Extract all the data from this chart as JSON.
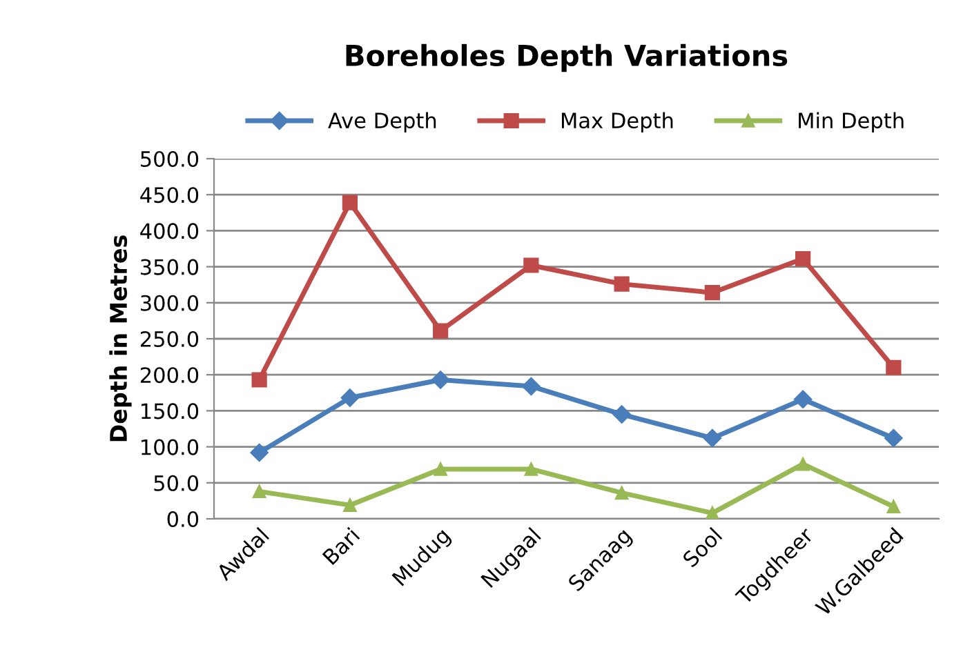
{
  "chart_data": {
    "type": "line",
    "title": "Boreholes Depth Variations",
    "ylabel": "Depth in Metres",
    "categories": [
      "Awdal",
      "Bari",
      "Mudug",
      "Nugaal",
      "Sanaag",
      "Sool",
      "Togdheer",
      "W.Galbeed"
    ],
    "series": [
      {
        "name": "Ave Depth",
        "color": "#4a7ebb",
        "marker": "diamond",
        "values": [
          92,
          168,
          193,
          184,
          145,
          112,
          166,
          112
        ]
      },
      {
        "name": "Max Depth",
        "color": "#be4b48",
        "marker": "square",
        "values": [
          193,
          439,
          261,
          352,
          326,
          314,
          361,
          210
        ]
      },
      {
        "name": "Min Depth",
        "color": "#98b954",
        "marker": "triangle",
        "values": [
          38,
          19,
          69,
          69,
          36,
          8,
          76,
          17
        ]
      }
    ],
    "ylim": [
      0,
      500
    ],
    "yticks": [
      {
        "value": 0,
        "label": "0.0"
      },
      {
        "value": 50,
        "label": "50.0"
      },
      {
        "value": 100,
        "label": "100.0"
      },
      {
        "value": 150,
        "label": "150.0"
      },
      {
        "value": 200,
        "label": "200.0"
      },
      {
        "value": 250,
        "label": "250.0"
      },
      {
        "value": 300,
        "label": "300.0"
      },
      {
        "value": 350,
        "label": "350.0"
      },
      {
        "value": 400,
        "label": "400.0"
      },
      {
        "value": 450,
        "label": "450.0"
      },
      {
        "value": 500,
        "label": "500.0"
      }
    ],
    "grid": "y",
    "legend": "top",
    "line_style": "solid"
  }
}
